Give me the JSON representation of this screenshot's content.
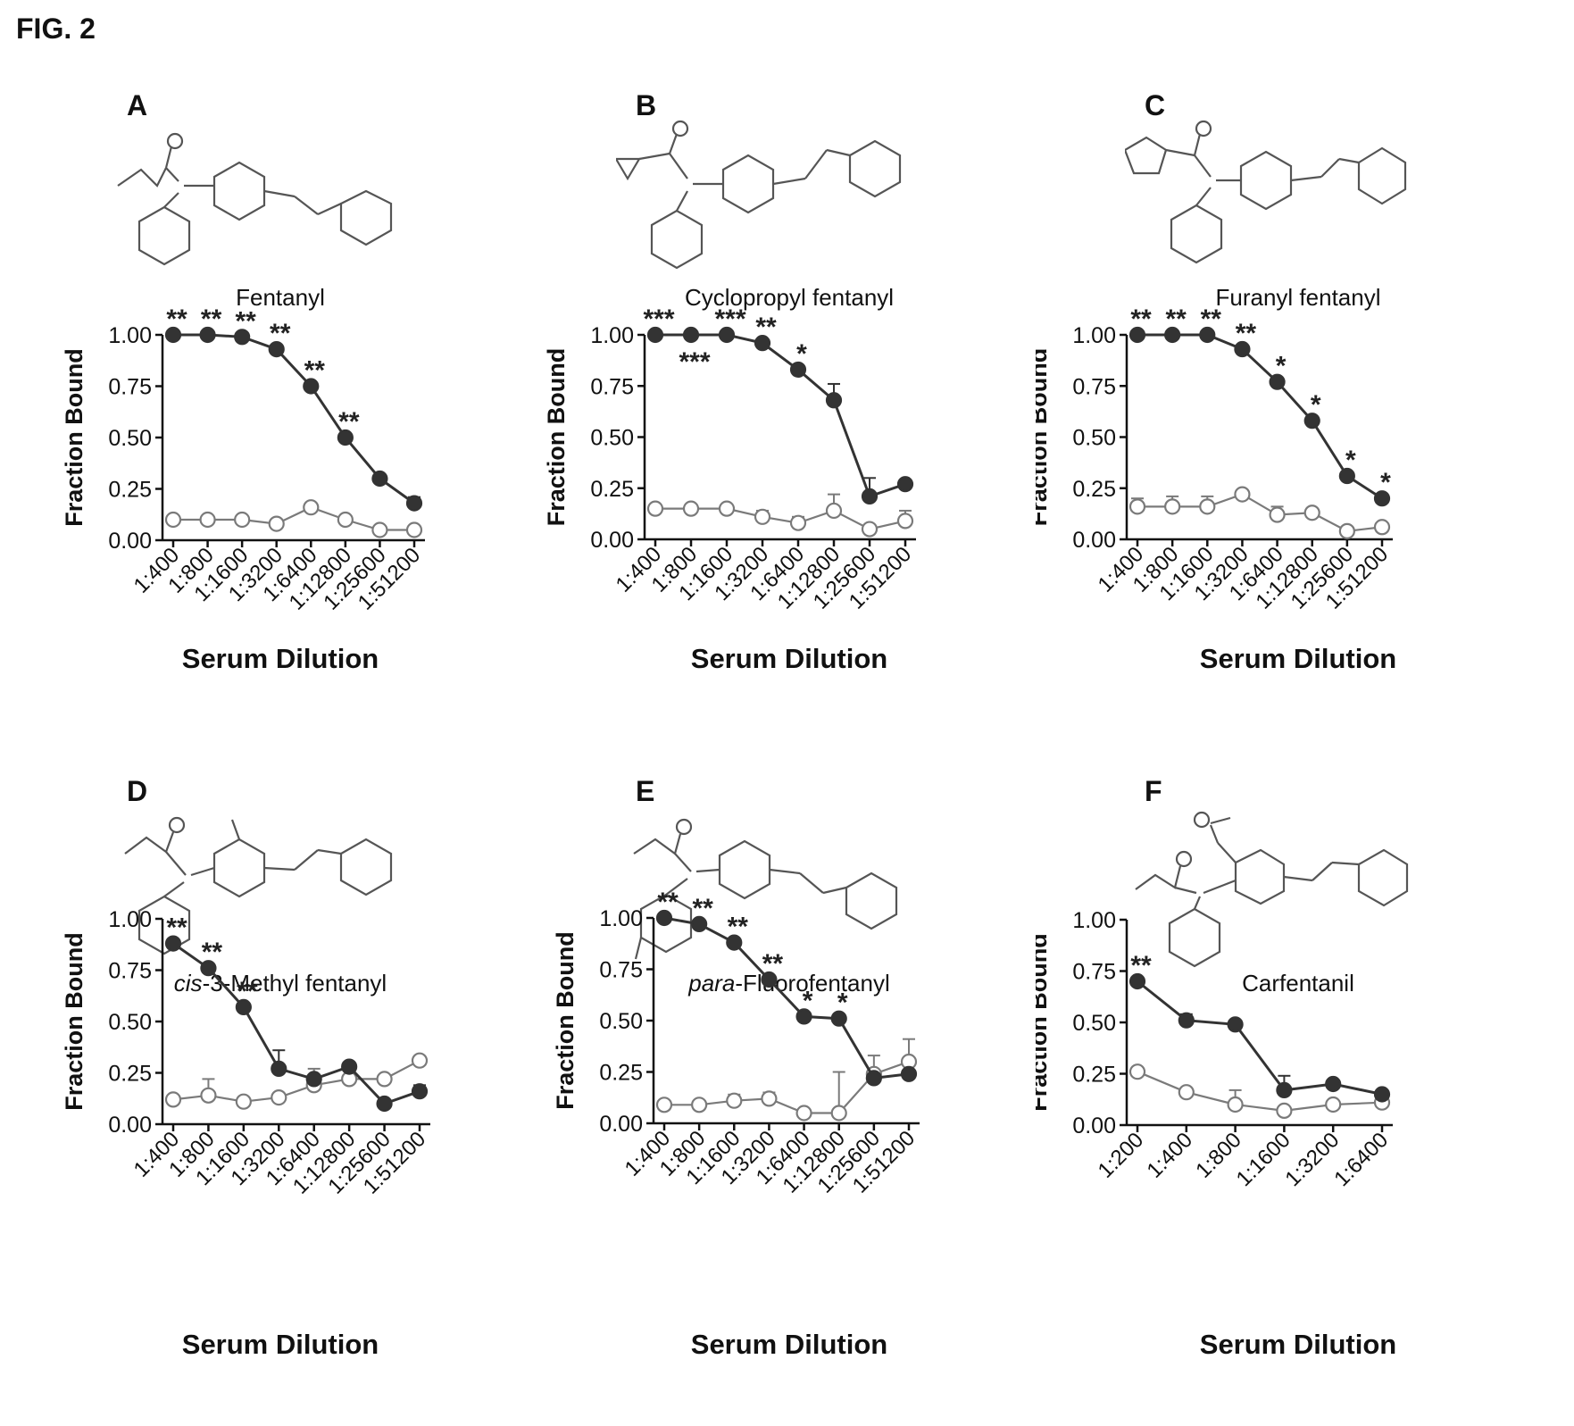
{
  "figure": {
    "title": "FIG. 2"
  },
  "colors": {
    "filled": "#333333",
    "open_stroke": "#7a7a7a",
    "axis": "#111111"
  },
  "panels": [
    {
      "letter": "A",
      "compound": {
        "prefix": "",
        "name": "Fentanyl"
      },
      "structure_icon": "fentanyl-structure"
    },
    {
      "letter": "B",
      "compound": {
        "prefix": "",
        "name": "Cyclopropyl fentanyl"
      },
      "structure_icon": "cyclopropyl-fentanyl-structure"
    },
    {
      "letter": "C",
      "compound": {
        "prefix": "",
        "name": "Furanyl fentanyl"
      },
      "structure_icon": "furanyl-fentanyl-structure"
    },
    {
      "letter": "D",
      "compound": {
        "prefix": "cis",
        "name": "-3-Methyl fentanyl"
      },
      "structure_icon": "cis-3-methyl-fentanyl-structure"
    },
    {
      "letter": "E",
      "compound": {
        "prefix": "para",
        "name": "-Fluorofentanyl"
      },
      "structure_icon": "para-fluorofentanyl-structure"
    },
    {
      "letter": "F",
      "compound": {
        "prefix": "",
        "name": "Carfentanil"
      },
      "structure_icon": "carfentanil-structure"
    }
  ],
  "chart_data": [
    {
      "type": "line",
      "categories": [
        "1:400",
        "1:800",
        "1:1600",
        "1:3200",
        "1:6400",
        "1:12800",
        "1:25600",
        "1:51200"
      ],
      "series": [
        {
          "marker": "filled",
          "values": [
            1.0,
            1.0,
            0.99,
            0.93,
            0.75,
            0.5,
            0.3,
            0.18
          ],
          "errors": [
            0,
            0,
            0,
            0,
            0,
            0,
            0,
            0.03
          ]
        },
        {
          "marker": "open",
          "values": [
            0.1,
            0.1,
            0.1,
            0.08,
            0.16,
            0.1,
            0.05,
            0.05
          ],
          "errors": [
            0,
            0,
            0,
            0,
            0,
            0,
            0.02,
            0
          ]
        }
      ],
      "annotations": [
        {
          "index": 0,
          "text": "**",
          "position": "above"
        },
        {
          "index": 1,
          "text": "**",
          "position": "above"
        },
        {
          "index": 2,
          "text": "**",
          "position": "above"
        },
        {
          "index": 3,
          "text": "**",
          "position": "above"
        },
        {
          "index": 4,
          "text": "**",
          "position": "above"
        },
        {
          "index": 5,
          "text": "**",
          "position": "above"
        }
      ],
      "xlabel": "Serum Dilution",
      "ylabel": "Fraction Bound",
      "ylim": [
        0,
        1
      ],
      "yticks": [
        "0.00",
        "0.25",
        "0.50",
        "0.75",
        "1.00"
      ],
      "grid": false
    },
    {
      "type": "line",
      "categories": [
        "1:400",
        "1:800",
        "1:1600",
        "1:3200",
        "1:6400",
        "1:12800",
        "1:25600",
        "1:51200"
      ],
      "series": [
        {
          "marker": "filled",
          "values": [
            1.0,
            1.0,
            1.0,
            0.96,
            0.83,
            0.68,
            0.21,
            0.27
          ],
          "errors": [
            0,
            0,
            0,
            0,
            0,
            0.08,
            0.09,
            0
          ]
        },
        {
          "marker": "open",
          "values": [
            0.15,
            0.15,
            0.15,
            0.11,
            0.08,
            0.14,
            0.05,
            0.09
          ],
          "errors": [
            0,
            0,
            0,
            0.03,
            0.03,
            0.08,
            0,
            0.05
          ]
        }
      ],
      "annotations": [
        {
          "index": 0,
          "text": "***",
          "position": "above"
        },
        {
          "index": 1,
          "text": "***",
          "position": "below"
        },
        {
          "index": 2,
          "text": "***",
          "position": "above"
        },
        {
          "index": 3,
          "text": "**",
          "position": "above"
        },
        {
          "index": 4,
          "text": "*",
          "position": "above"
        }
      ],
      "xlabel": "Serum Dilution",
      "ylabel": "Fraction Bound",
      "ylim": [
        0,
        1
      ],
      "yticks": [
        "0.00",
        "0.25",
        "0.50",
        "0.75",
        "1.00"
      ],
      "grid": false
    },
    {
      "type": "line",
      "categories": [
        "1:400",
        "1:800",
        "1:1600",
        "1:3200",
        "1:6400",
        "1:12800",
        "1:25600",
        "1:51200"
      ],
      "series": [
        {
          "marker": "filled",
          "values": [
            1.0,
            1.0,
            1.0,
            0.93,
            0.77,
            0.58,
            0.31,
            0.2
          ],
          "errors": [
            0,
            0,
            0,
            0,
            0,
            0,
            0,
            0
          ]
        },
        {
          "marker": "open",
          "values": [
            0.16,
            0.16,
            0.16,
            0.22,
            0.12,
            0.13,
            0.04,
            0.06
          ],
          "errors": [
            0.04,
            0.05,
            0.05,
            0,
            0.04,
            0,
            0.02,
            0
          ]
        }
      ],
      "annotations": [
        {
          "index": 0,
          "text": "**",
          "position": "above"
        },
        {
          "index": 1,
          "text": "**",
          "position": "above"
        },
        {
          "index": 2,
          "text": "**",
          "position": "above"
        },
        {
          "index": 3,
          "text": "**",
          "position": "above"
        },
        {
          "index": 4,
          "text": "*",
          "position": "above"
        },
        {
          "index": 5,
          "text": "*",
          "position": "above"
        },
        {
          "index": 6,
          "text": "*",
          "position": "above"
        },
        {
          "index": 7,
          "text": "*",
          "position": "above"
        }
      ],
      "xlabel": "Serum Dilution",
      "ylabel": "Fraction Bound",
      "ylim": [
        0,
        1
      ],
      "yticks": [
        "0.00",
        "0.25",
        "0.50",
        "0.75",
        "1.00"
      ],
      "grid": false
    },
    {
      "type": "line",
      "categories": [
        "1:400",
        "1:800",
        "1:1600",
        "1:3200",
        "1:6400",
        "1:12800",
        "1:25600",
        "1:51200"
      ],
      "series": [
        {
          "marker": "filled",
          "values": [
            0.88,
            0.76,
            0.57,
            0.27,
            0.22,
            0.28,
            0.1,
            0.16
          ],
          "errors": [
            0,
            0,
            0,
            0.09,
            0,
            0,
            0,
            0.03
          ]
        },
        {
          "marker": "open",
          "values": [
            0.12,
            0.14,
            0.11,
            0.13,
            0.19,
            0.22,
            0.22,
            0.31
          ],
          "errors": [
            0,
            0.08,
            0,
            0,
            0.08,
            0,
            0,
            0
          ]
        }
      ],
      "annotations": [
        {
          "index": 0,
          "text": "**",
          "position": "above"
        },
        {
          "index": 1,
          "text": "**",
          "position": "above"
        },
        {
          "index": 2,
          "text": "**",
          "position": "above"
        }
      ],
      "xlabel": "Serum Dilution",
      "ylabel": "Fraction Bound",
      "ylim": [
        0,
        1
      ],
      "yticks": [
        "0.00",
        "0.25",
        "0.50",
        "0.75",
        "1.00"
      ],
      "grid": false
    },
    {
      "type": "line",
      "categories": [
        "1:400",
        "1:800",
        "1:1600",
        "1:3200",
        "1:6400",
        "1:12800",
        "1:25600",
        "1:51200"
      ],
      "series": [
        {
          "marker": "filled",
          "values": [
            1.0,
            0.97,
            0.88,
            0.7,
            0.52,
            0.51,
            0.22,
            0.24
          ],
          "errors": [
            0,
            0,
            0,
            0,
            0,
            0,
            0,
            0
          ]
        },
        {
          "marker": "open",
          "values": [
            0.09,
            0.09,
            0.11,
            0.12,
            0.05,
            0.05,
            0.24,
            0.3
          ],
          "errors": [
            0,
            0,
            0.03,
            0.03,
            0,
            0.2,
            0.09,
            0.11
          ]
        }
      ],
      "annotations": [
        {
          "index": 0,
          "text": "**",
          "position": "above"
        },
        {
          "index": 1,
          "text": "**",
          "position": "above"
        },
        {
          "index": 2,
          "text": "**",
          "position": "above"
        },
        {
          "index": 3,
          "text": "**",
          "position": "above"
        },
        {
          "index": 4,
          "text": "*",
          "position": "above"
        },
        {
          "index": 5,
          "text": "*",
          "position": "above"
        }
      ],
      "xlabel": "Serum Dilution",
      "ylabel": "Fraction Bound",
      "ylim": [
        0,
        1
      ],
      "yticks": [
        "0.00",
        "0.25",
        "0.50",
        "0.75",
        "1.00"
      ],
      "grid": false
    },
    {
      "type": "line",
      "categories": [
        "1:200",
        "1:400",
        "1:800",
        "1:1600",
        "1:3200",
        "1:6400"
      ],
      "series": [
        {
          "marker": "filled",
          "values": [
            0.7,
            0.51,
            0.49,
            0.17,
            0.2,
            0.15
          ],
          "errors": [
            0,
            0.03,
            0,
            0.07,
            0,
            0
          ]
        },
        {
          "marker": "open",
          "values": [
            0.26,
            0.16,
            0.1,
            0.07,
            0.1,
            0.11
          ],
          "errors": [
            0,
            0,
            0.07,
            0,
            0,
            0
          ]
        }
      ],
      "annotations": [
        {
          "index": 0,
          "text": "**",
          "position": "above"
        }
      ],
      "xlabel": "Serum Dilution",
      "ylabel": "Fraction Bound",
      "ylim": [
        0,
        1
      ],
      "yticks": [
        "0.00",
        "0.25",
        "0.50",
        "0.75",
        "1.00"
      ],
      "grid": false
    }
  ]
}
